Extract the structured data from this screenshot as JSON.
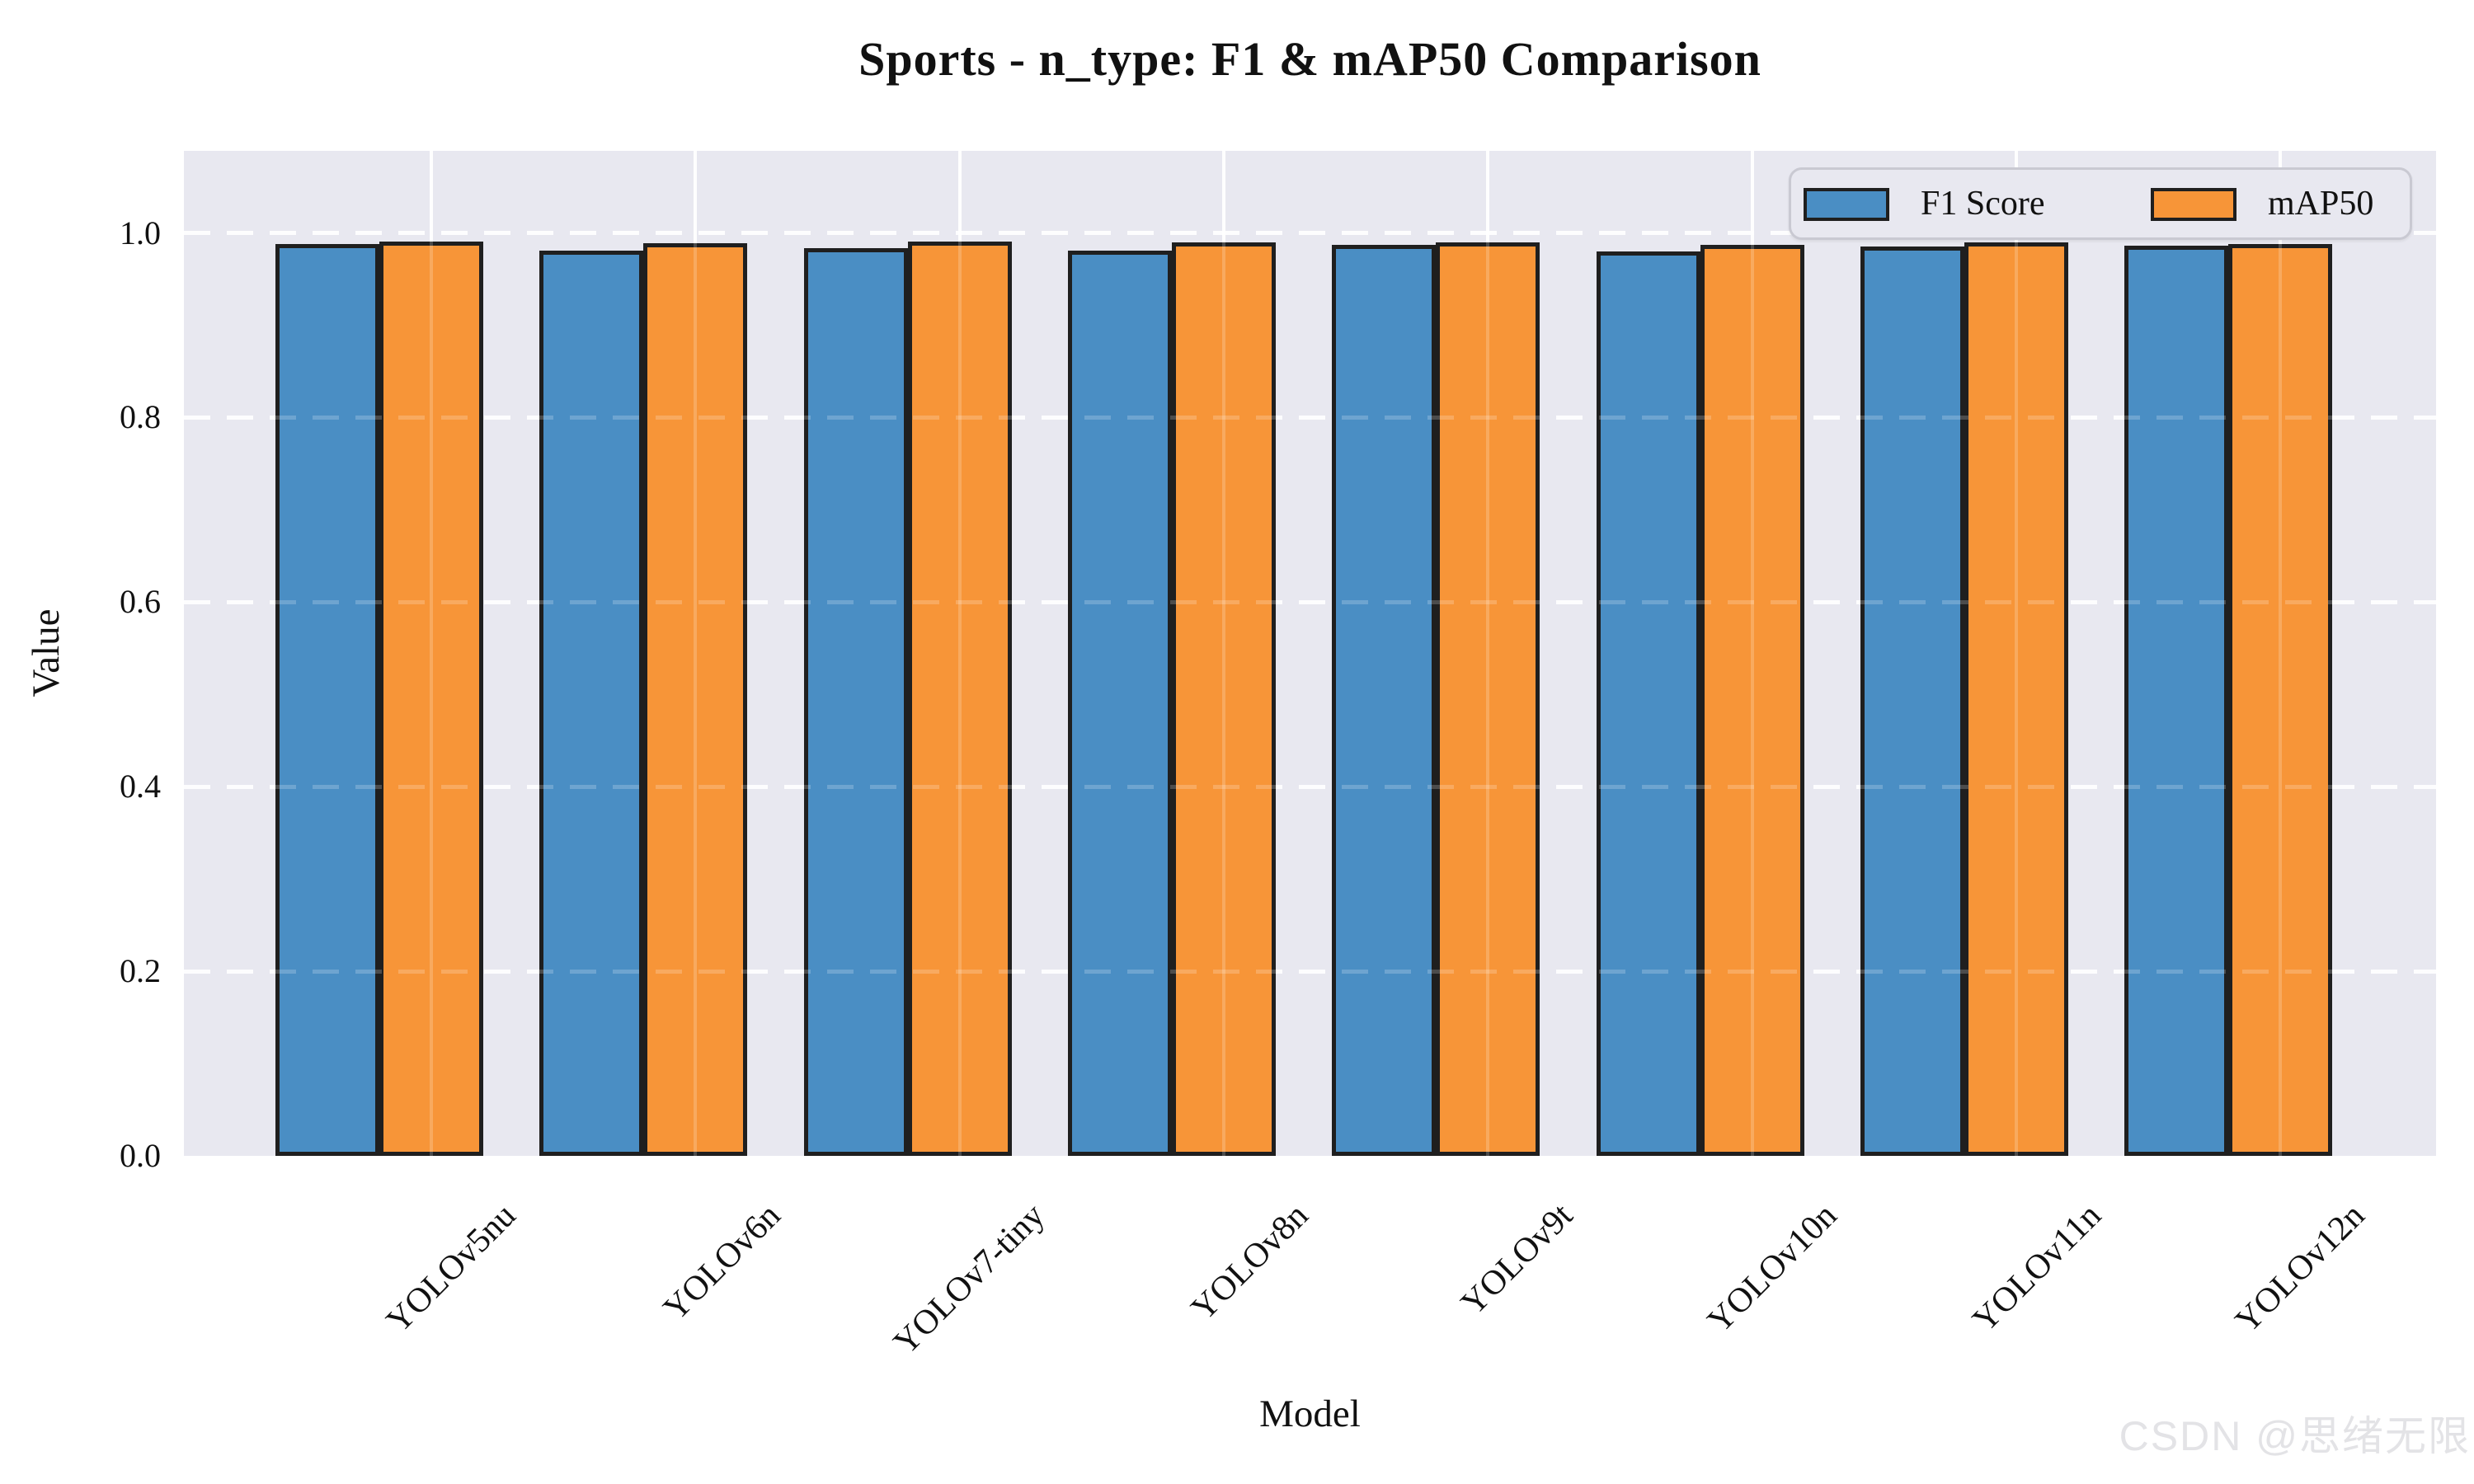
{
  "title": "Sports - n_type: F1 & mAP50 Comparison",
  "watermark": "CSDN @思绪无限",
  "chart_data": {
    "type": "bar",
    "title": "Sports - n_type: F1 & mAP50 Comparison",
    "xlabel": "Model",
    "ylabel": "Value",
    "categories": [
      "YOLOv5nu",
      "YOLOv6n",
      "YOLOv7-tiny",
      "YOLOv8n",
      "YOLOv9t",
      "YOLOv10n",
      "YOLOv11n",
      "YOLOv12n"
    ],
    "series": [
      {
        "name": "F1 Score",
        "values": [
          0.988,
          0.981,
          0.984,
          0.981,
          0.987,
          0.98,
          0.985,
          0.986
        ]
      },
      {
        "name": "mAP50",
        "values": [
          0.991,
          0.989,
          0.991,
          0.99,
          0.99,
          0.987,
          0.99,
          0.988
        ]
      }
    ],
    "ylim": [
      0,
      1.089
    ],
    "yticks": [
      0.0,
      0.2,
      0.4,
      0.6,
      0.8,
      1.0
    ],
    "grid": true,
    "grid_style": "horizontal dashed, vertical solid, white, drawn above bars",
    "legend_position": "upper right"
  },
  "colors": {
    "f1": "#4a8ec4",
    "map50": "#f79538",
    "bar_edge": "#1f1f1f",
    "plot_bg": "#e8e8f0",
    "grid": "#ffffff",
    "legend_border": "#c9c9d2",
    "watermark": "#e3e3e6"
  }
}
